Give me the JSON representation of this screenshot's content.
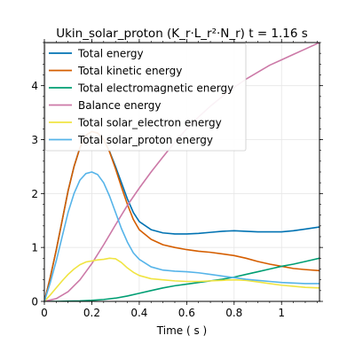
{
  "chart_data": {
    "type": "line",
    "title": "Ukin_solar_proton (K_r·L_r²·N_r)  t = 1.16 s",
    "xlabel": "Time ( s )",
    "ylabel": "",
    "xlim": [
      0,
      1.16
    ],
    "ylim": [
      0,
      4.8
    ],
    "x_ticks": [
      0,
      0.2,
      0.4,
      0.6,
      0.8,
      1
    ],
    "x_tick_labels": [
      "0",
      "0.2",
      "0.4",
      "0.6",
      "0.8",
      "1"
    ],
    "y_ticks": [
      0,
      1,
      2,
      3,
      4
    ],
    "y_tick_labels": [
      "0",
      "1",
      "2",
      "3",
      "4"
    ],
    "grid": true,
    "legend_position": "top-left",
    "series": [
      {
        "name": "Total energy",
        "color": "#0072b2",
        "x": [
          0,
          0.025,
          0.05,
          0.075,
          0.1,
          0.125,
          0.15,
          0.175,
          0.2,
          0.225,
          0.25,
          0.275,
          0.3,
          0.325,
          0.35,
          0.375,
          0.4,
          0.45,
          0.5,
          0.55,
          0.6,
          0.65,
          0.7,
          0.75,
          0.8,
          0.85,
          0.9,
          0.95,
          1.0,
          1.05,
          1.1,
          1.16
        ],
        "y": [
          0,
          0.45,
          0.95,
          1.5,
          2.05,
          2.5,
          2.85,
          3.08,
          3.15,
          3.12,
          3.0,
          2.78,
          2.5,
          2.2,
          1.9,
          1.65,
          1.48,
          1.33,
          1.27,
          1.25,
          1.25,
          1.26,
          1.28,
          1.3,
          1.31,
          1.3,
          1.29,
          1.29,
          1.29,
          1.31,
          1.34,
          1.38
        ]
      },
      {
        "name": "Total kinetic energy",
        "color": "#d55e00",
        "x": [
          0,
          0.025,
          0.05,
          0.075,
          0.1,
          0.125,
          0.15,
          0.175,
          0.2,
          0.225,
          0.25,
          0.275,
          0.3,
          0.325,
          0.35,
          0.375,
          0.4,
          0.45,
          0.5,
          0.55,
          0.6,
          0.65,
          0.7,
          0.75,
          0.8,
          0.85,
          0.9,
          0.95,
          1.0,
          1.05,
          1.1,
          1.16
        ],
        "y": [
          0,
          0.45,
          0.95,
          1.5,
          2.05,
          2.5,
          2.85,
          3.08,
          3.15,
          3.12,
          3.0,
          2.77,
          2.46,
          2.12,
          1.8,
          1.52,
          1.33,
          1.15,
          1.05,
          1.0,
          0.96,
          0.93,
          0.91,
          0.88,
          0.85,
          0.8,
          0.74,
          0.69,
          0.65,
          0.61,
          0.59,
          0.57
        ]
      },
      {
        "name": "Total electromagnetic energy",
        "color": "#009e73",
        "x": [
          0,
          0.05,
          0.1,
          0.15,
          0.2,
          0.25,
          0.3,
          0.35,
          0.4,
          0.45,
          0.5,
          0.55,
          0.6,
          0.65,
          0.7,
          0.75,
          0.8,
          0.85,
          0.9,
          0.95,
          1.0,
          1.05,
          1.1,
          1.16
        ],
        "y": [
          0,
          0,
          0.005,
          0.01,
          0.02,
          0.035,
          0.06,
          0.1,
          0.15,
          0.2,
          0.25,
          0.29,
          0.32,
          0.35,
          0.38,
          0.41,
          0.45,
          0.5,
          0.55,
          0.6,
          0.65,
          0.69,
          0.74,
          0.8
        ]
      },
      {
        "name": "Balance energy",
        "color": "#cc79a7",
        "x": [
          0,
          0.05,
          0.1,
          0.15,
          0.2,
          0.25,
          0.3,
          0.35,
          0.4,
          0.45,
          0.5,
          0.55,
          0.6,
          0.65,
          0.7,
          0.75,
          0.8,
          0.85,
          0.9,
          0.95,
          1.0,
          1.05,
          1.1,
          1.16
        ],
        "y": [
          0,
          0.05,
          0.18,
          0.4,
          0.7,
          1.05,
          1.42,
          1.78,
          2.1,
          2.4,
          2.68,
          2.95,
          3.2,
          3.42,
          3.62,
          3.8,
          3.97,
          4.12,
          4.25,
          4.38,
          4.48,
          4.58,
          4.68,
          4.8
        ]
      },
      {
        "name": "Total solar_electron energy",
        "color": "#f0e442",
        "x": [
          0,
          0.025,
          0.05,
          0.075,
          0.1,
          0.125,
          0.15,
          0.175,
          0.2,
          0.225,
          0.25,
          0.275,
          0.3,
          0.325,
          0.35,
          0.375,
          0.4,
          0.45,
          0.5,
          0.55,
          0.6,
          0.65,
          0.7,
          0.75,
          0.8,
          0.85,
          0.9,
          0.95,
          1.0,
          1.05,
          1.1,
          1.16
        ],
        "y": [
          0,
          0.12,
          0.25,
          0.38,
          0.5,
          0.6,
          0.68,
          0.73,
          0.75,
          0.77,
          0.78,
          0.8,
          0.79,
          0.72,
          0.62,
          0.54,
          0.48,
          0.42,
          0.4,
          0.38,
          0.37,
          0.37,
          0.38,
          0.39,
          0.4,
          0.39,
          0.36,
          0.33,
          0.3,
          0.28,
          0.26,
          0.25
        ]
      },
      {
        "name": "Total solar_proton energy",
        "color": "#56b4e9",
        "x": [
          0,
          0.025,
          0.05,
          0.075,
          0.1,
          0.125,
          0.15,
          0.175,
          0.2,
          0.225,
          0.25,
          0.275,
          0.3,
          0.325,
          0.35,
          0.375,
          0.4,
          0.45,
          0.5,
          0.55,
          0.6,
          0.65,
          0.7,
          0.75,
          0.8,
          0.85,
          0.9,
          0.95,
          1.0,
          1.05,
          1.1,
          1.16
        ],
        "y": [
          0,
          0.35,
          0.75,
          1.2,
          1.65,
          2.0,
          2.25,
          2.37,
          2.4,
          2.35,
          2.2,
          1.95,
          1.65,
          1.35,
          1.1,
          0.9,
          0.78,
          0.64,
          0.58,
          0.56,
          0.55,
          0.53,
          0.5,
          0.47,
          0.44,
          0.41,
          0.39,
          0.37,
          0.35,
          0.34,
          0.33,
          0.33
        ]
      }
    ]
  }
}
